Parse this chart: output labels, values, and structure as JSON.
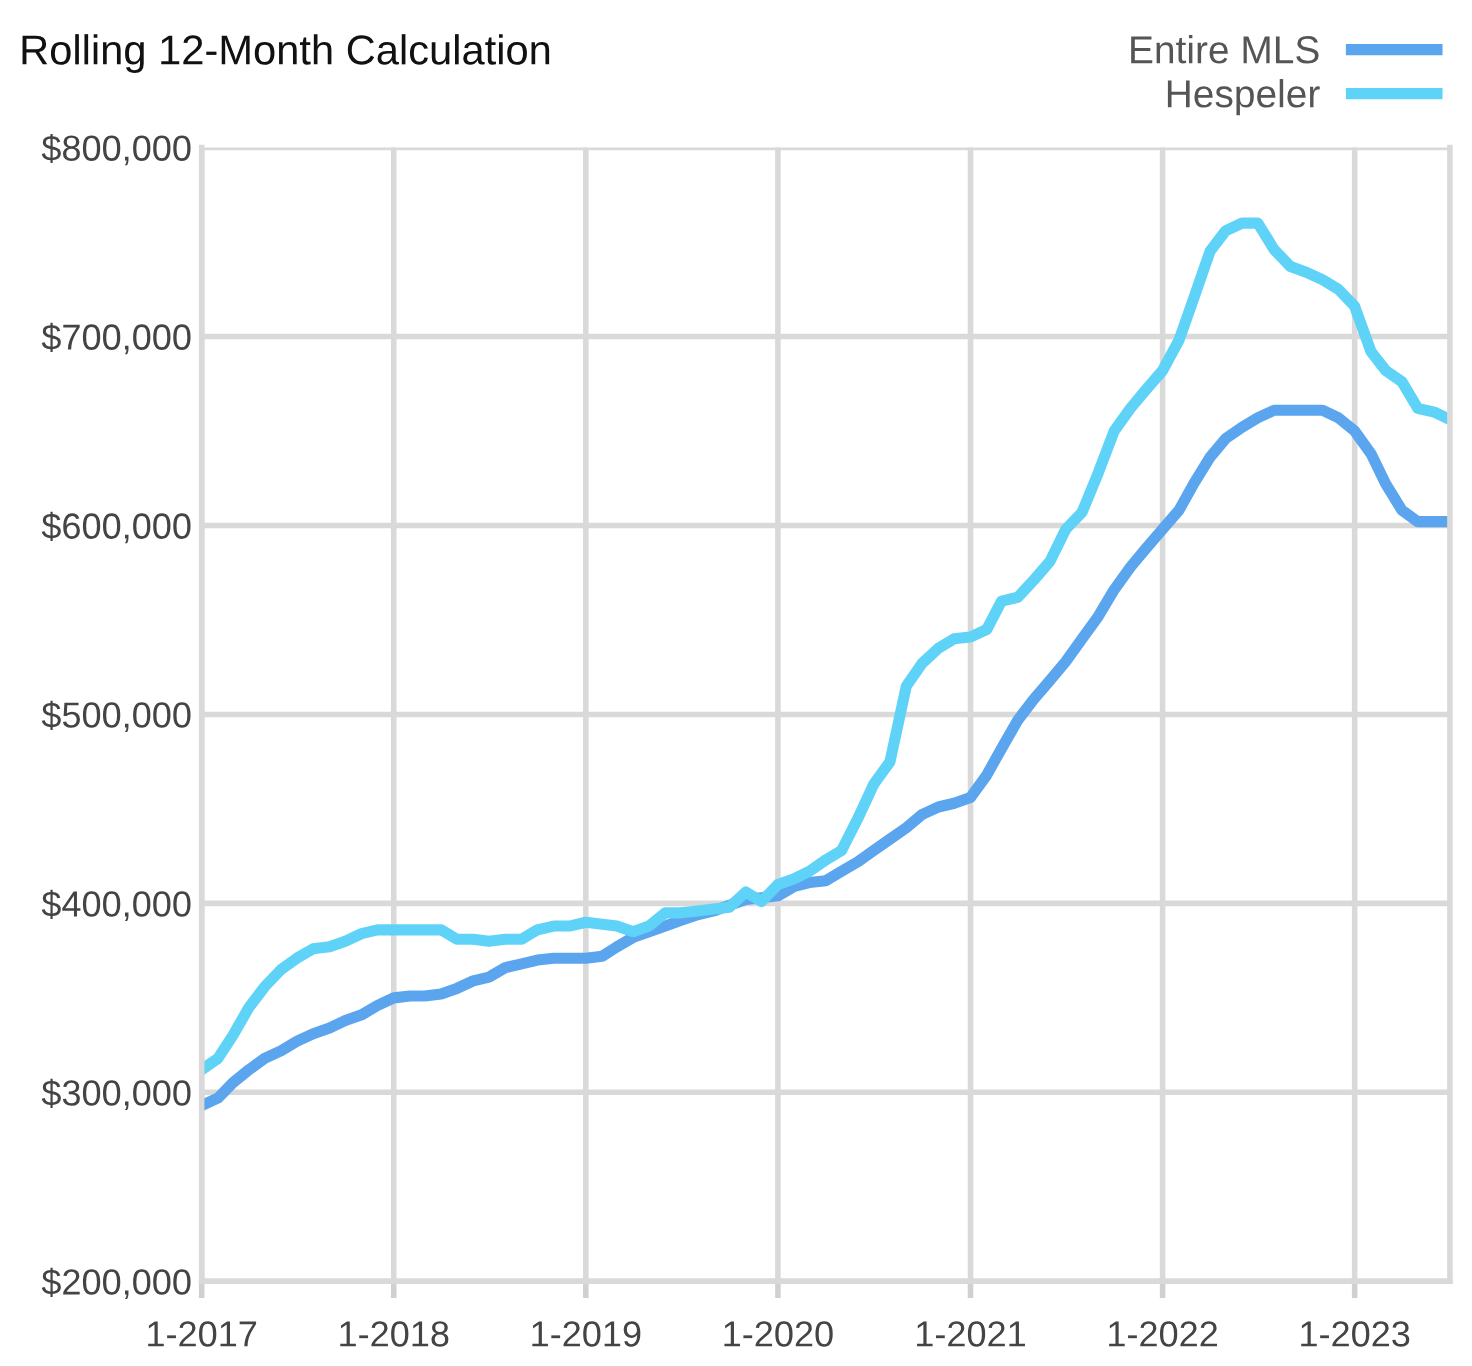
{
  "chart_data": {
    "type": "line",
    "title": "Rolling 12-Month Calculation",
    "x": [
      "2017-01",
      "2017-02",
      "2017-03",
      "2017-04",
      "2017-05",
      "2017-06",
      "2017-07",
      "2017-08",
      "2017-09",
      "2017-10",
      "2017-11",
      "2017-12",
      "2018-01",
      "2018-02",
      "2018-03",
      "2018-04",
      "2018-05",
      "2018-06",
      "2018-07",
      "2018-08",
      "2018-09",
      "2018-10",
      "2018-11",
      "2018-12",
      "2019-01",
      "2019-02",
      "2019-03",
      "2019-04",
      "2019-05",
      "2019-06",
      "2019-07",
      "2019-08",
      "2019-09",
      "2019-10",
      "2019-11",
      "2019-12",
      "2020-01",
      "2020-02",
      "2020-03",
      "2020-04",
      "2020-05",
      "2020-06",
      "2020-07",
      "2020-08",
      "2020-09",
      "2020-10",
      "2020-11",
      "2020-12",
      "2021-01",
      "2021-02",
      "2021-03",
      "2021-04",
      "2021-05",
      "2021-06",
      "2021-07",
      "2021-08",
      "2021-09",
      "2021-10",
      "2021-11",
      "2021-12",
      "2022-01",
      "2022-02",
      "2022-03",
      "2022-04",
      "2022-05",
      "2022-06",
      "2022-07",
      "2022-08",
      "2022-09",
      "2022-10",
      "2022-11",
      "2022-12",
      "2023-01",
      "2023-02",
      "2023-03",
      "2023-04",
      "2023-05",
      "2023-06",
      "2023-07"
    ],
    "series": [
      {
        "name": "Entire MLS",
        "color": "#5aa5ee",
        "values": [
          293000,
          297000,
          305000,
          312000,
          318000,
          322000,
          327000,
          331000,
          334000,
          338000,
          341000,
          346000,
          350000,
          351000,
          351000,
          352000,
          355000,
          359000,
          361000,
          366000,
          368000,
          370000,
          371000,
          371000,
          371000,
          372000,
          377000,
          382000,
          385000,
          388000,
          391000,
          394000,
          396000,
          399000,
          402000,
          403000,
          404000,
          409000,
          411000,
          412000,
          417000,
          422000,
          428000,
          434000,
          440000,
          447000,
          451000,
          453000,
          456000,
          468000,
          482000,
          497000,
          508000,
          518000,
          528000,
          540000,
          552000,
          566000,
          578000,
          588000,
          598000,
          608000,
          622000,
          636000,
          646000,
          652000,
          657000,
          661000,
          661000,
          661000,
          661000,
          657000,
          650000,
          638000,
          622000,
          608000,
          602000,
          602000,
          602000
        ]
      },
      {
        "name": "Hespeler",
        "color": "#5fd3f7",
        "values": [
          312000,
          318000,
          330000,
          345000,
          356000,
          365000,
          371000,
          376000,
          377000,
          380000,
          384000,
          386000,
          386000,
          386000,
          386000,
          386000,
          381000,
          381000,
          380000,
          381000,
          381000,
          386000,
          388000,
          388000,
          390000,
          389000,
          388000,
          385000,
          388000,
          395000,
          395000,
          396000,
          397000,
          398000,
          406000,
          401000,
          410000,
          413000,
          417000,
          423000,
          428000,
          445000,
          463000,
          475000,
          515000,
          527000,
          535000,
          540000,
          541000,
          545000,
          560000,
          562000,
          571000,
          581000,
          598000,
          607000,
          628000,
          650000,
          662000,
          672000,
          682000,
          698000,
          720000,
          745000,
          756000,
          760000,
          760000,
          746000,
          737000,
          734000,
          730000,
          725000,
          716000,
          692000,
          682000,
          676000,
          662000,
          660000,
          656000
        ]
      }
    ],
    "xlim": [
      "2017-01",
      "2023-07"
    ],
    "xticks": [
      {
        "value": "2017-01",
        "label": "1-2017"
      },
      {
        "value": "2018-01",
        "label": "1-2018"
      },
      {
        "value": "2019-01",
        "label": "1-2019"
      },
      {
        "value": "2020-01",
        "label": "1-2020"
      },
      {
        "value": "2021-01",
        "label": "1-2021"
      },
      {
        "value": "2022-01",
        "label": "1-2022"
      },
      {
        "value": "2023-01",
        "label": "1-2023"
      }
    ],
    "ylim": [
      200000,
      800000
    ],
    "yticks": [
      {
        "value": 200000,
        "label": "$200,000"
      },
      {
        "value": 300000,
        "label": "$300,000"
      },
      {
        "value": 400000,
        "label": "$400,000"
      },
      {
        "value": 500000,
        "label": "$500,000"
      },
      {
        "value": 600000,
        "label": "$600,000"
      },
      {
        "value": 700000,
        "label": "$700,000"
      },
      {
        "value": 800000,
        "label": "$800,000"
      }
    ],
    "grid": true,
    "legend": "top right",
    "marker": "none",
    "line_style": "solid"
  }
}
